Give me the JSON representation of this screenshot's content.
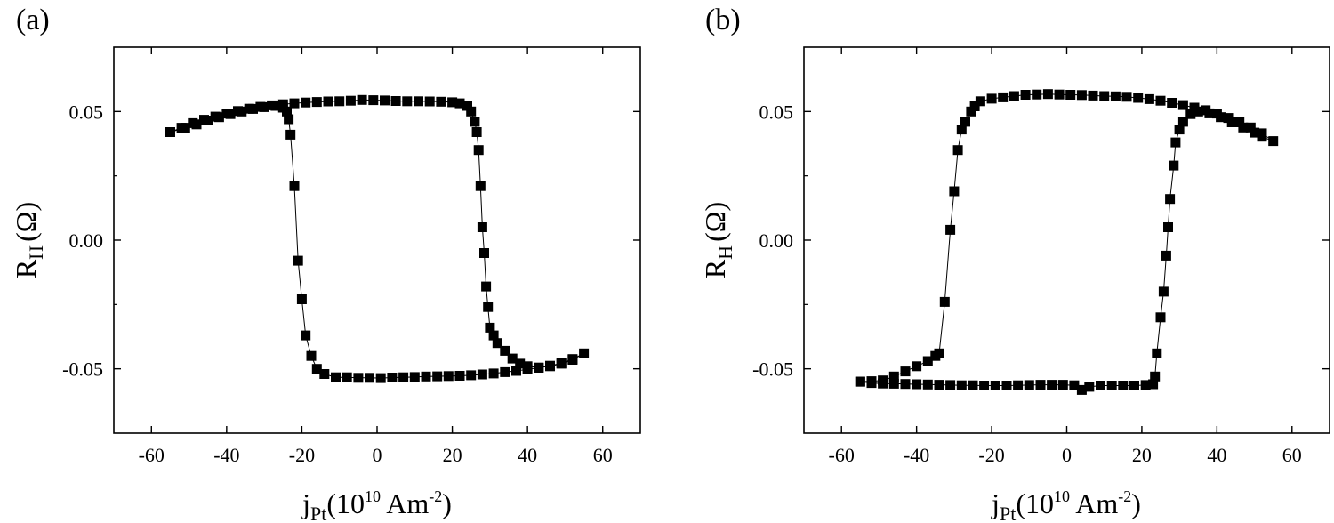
{
  "chart_data": [
    {
      "type": "line",
      "panel_label": "(a)",
      "xlabel_main": "j",
      "xlabel_sub": "Pt",
      "xlabel_open": "(10",
      "xlabel_sup1": "10",
      "xlabel_unit": " Am",
      "xlabel_sup2": "-2",
      "xlabel_close": ")",
      "ylabel_main": "R",
      "ylabel_sub": "H",
      "ylabel_unit": "(Ω)",
      "xlim": [
        -70,
        70
      ],
      "ylim": [
        -0.075,
        0.075
      ],
      "xticks": [
        -60,
        -40,
        -20,
        0,
        20,
        40,
        60
      ],
      "xtick_labels": [
        "-60",
        "-40",
        "-20",
        "0",
        "20",
        "40",
        "60"
      ],
      "yticks": [
        -0.05,
        0.0,
        0.05
      ],
      "ytick_labels": [
        "-0.05",
        "0.00",
        "0.05"
      ],
      "grid": false,
      "color": "#000000",
      "series": [
        {
          "values": [
            [
              -55,
              0.042
            ],
            [
              -52,
              0.0437
            ],
            [
              -49,
              0.0455
            ],
            [
              -46,
              0.0468
            ],
            [
              -43,
              0.048
            ],
            [
              -40,
              0.0492
            ],
            [
              -37,
              0.0502
            ],
            [
              -34,
              0.0511
            ],
            [
              -31,
              0.0518
            ],
            [
              -28,
              0.0524
            ],
            [
              -25,
              0.0528
            ],
            [
              -22,
              0.0532
            ],
            [
              -19,
              0.0535
            ],
            [
              -16,
              0.0537
            ],
            [
              -13,
              0.0539
            ],
            [
              -10,
              0.054
            ],
            [
              -7,
              0.0542
            ],
            [
              -4,
              0.0545
            ],
            [
              -1,
              0.0544
            ],
            [
              2,
              0.0543
            ],
            [
              5,
              0.0541
            ],
            [
              8,
              0.054
            ],
            [
              11,
              0.054
            ],
            [
              14,
              0.0539
            ],
            [
              17,
              0.0538
            ],
            [
              20,
              0.0536
            ],
            [
              22,
              0.0532
            ],
            [
              24,
              0.0522
            ],
            [
              25,
              0.05
            ],
            [
              26,
              0.046
            ],
            [
              26.5,
              0.042
            ],
            [
              27,
              0.035
            ],
            [
              27.5,
              0.021
            ],
            [
              28,
              0.005
            ],
            [
              28.5,
              -0.005
            ],
            [
              29,
              -0.018
            ],
            [
              29.5,
              -0.026
            ],
            [
              30,
              -0.034
            ],
            [
              31,
              -0.037
            ],
            [
              32,
              -0.04
            ],
            [
              34,
              -0.043
            ],
            [
              36,
              -0.046
            ],
            [
              38,
              -0.048
            ],
            [
              40,
              -0.049
            ],
            [
              43,
              -0.0495
            ],
            [
              46,
              -0.049
            ],
            [
              49,
              -0.048
            ],
            [
              52,
              -0.0465
            ],
            [
              55,
              -0.044
            ],
            [
              52,
              -0.0462
            ],
            [
              49,
              -0.0478
            ],
            [
              46,
              -0.0488
            ],
            [
              43,
              -0.0496
            ],
            [
              40,
              -0.0502
            ],
            [
              37,
              -0.0508
            ],
            [
              34,
              -0.0513
            ],
            [
              31,
              -0.0518
            ],
            [
              28,
              -0.0522
            ],
            [
              25,
              -0.0525
            ],
            [
              22,
              -0.0527
            ],
            [
              19,
              -0.0528
            ],
            [
              16,
              -0.0529
            ],
            [
              13,
              -0.053
            ],
            [
              10,
              -0.0532
            ],
            [
              7,
              -0.0533
            ],
            [
              4,
              -0.0534
            ],
            [
              1,
              -0.0536
            ],
            [
              -2,
              -0.0535
            ],
            [
              -5,
              -0.0535
            ],
            [
              -8,
              -0.0533
            ],
            [
              -11,
              -0.0533
            ],
            [
              -14,
              -0.052
            ],
            [
              -16,
              -0.05
            ],
            [
              -17.5,
              -0.045
            ],
            [
              -19,
              -0.037
            ],
            [
              -20,
              -0.023
            ],
            [
              -21,
              -0.008
            ],
            [
              -22,
              0.021
            ],
            [
              -23,
              0.041
            ],
            [
              -23.5,
              0.047
            ],
            [
              -24,
              0.05
            ],
            [
              -25,
              0.0515
            ],
            [
              -27,
              0.0522
            ],
            [
              -30,
              0.0517
            ],
            [
              -33,
              0.051
            ],
            [
              -36,
              0.05
            ],
            [
              -39,
              0.049
            ],
            [
              -42,
              0.0478
            ],
            [
              -45,
              0.0465
            ],
            [
              -48,
              0.045
            ],
            [
              -51,
              0.0437
            ],
            [
              -55,
              0.042
            ]
          ]
        }
      ]
    },
    {
      "type": "line",
      "panel_label": "(b)",
      "xlabel_main": "j",
      "xlabel_sub": "Pt",
      "xlabel_open": "(10",
      "xlabel_sup1": "10",
      "xlabel_unit": " Am",
      "xlabel_sup2": "-2",
      "xlabel_close": ")",
      "ylabel_main": "R",
      "ylabel_sub": "H",
      "ylabel_unit": "(Ω)",
      "xlim": [
        -70,
        70
      ],
      "ylim": [
        -0.075,
        0.075
      ],
      "xticks": [
        -60,
        -40,
        -20,
        0,
        20,
        40,
        60
      ],
      "xtick_labels": [
        "-60",
        "-40",
        "-20",
        "0",
        "20",
        "40",
        "60"
      ],
      "yticks": [
        -0.05,
        0.0,
        0.05
      ],
      "ytick_labels": [
        "-0.05",
        "0.00",
        "0.05"
      ],
      "grid": false,
      "color": "#000000",
      "series": [
        {
          "values": [
            [
              -55,
              -0.055
            ],
            [
              -52,
              -0.0555
            ],
            [
              -49,
              -0.0557
            ],
            [
              -46,
              -0.0558
            ],
            [
              -43,
              -0.0559
            ],
            [
              -40,
              -0.056
            ],
            [
              -37,
              -0.0561
            ],
            [
              -34,
              -0.0562
            ],
            [
              -31,
              -0.0563
            ],
            [
              -28,
              -0.0564
            ],
            [
              -25,
              -0.0564
            ],
            [
              -22,
              -0.0565
            ],
            [
              -19,
              -0.0565
            ],
            [
              -16,
              -0.0565
            ],
            [
              -13,
              -0.0564
            ],
            [
              -10,
              -0.0563
            ],
            [
              -7,
              -0.0562
            ],
            [
              -4,
              -0.0562
            ],
            [
              -1,
              -0.0562
            ],
            [
              2,
              -0.0564
            ],
            [
              4,
              -0.0582
            ],
            [
              6,
              -0.057
            ],
            [
              9,
              -0.0565
            ],
            [
              12,
              -0.0565
            ],
            [
              15,
              -0.0565
            ],
            [
              18,
              -0.0565
            ],
            [
              21,
              -0.0563
            ],
            [
              23,
              -0.056
            ],
            [
              23.5,
              -0.053
            ],
            [
              24,
              -0.044
            ],
            [
              25,
              -0.03
            ],
            [
              25.8,
              -0.02
            ],
            [
              26.5,
              -0.006
            ],
            [
              27,
              0.005
            ],
            [
              27.5,
              0.016
            ],
            [
              28.5,
              0.029
            ],
            [
              29,
              0.038
            ],
            [
              30,
              0.043
            ],
            [
              31,
              0.046
            ],
            [
              33,
              0.049
            ],
            [
              35,
              0.05
            ],
            [
              38,
              0.0493
            ],
            [
              41,
              0.0478
            ],
            [
              44,
              0.0458
            ],
            [
              47,
              0.0438
            ],
            [
              50,
              0.0418
            ],
            [
              52,
              0.0402
            ],
            [
              55,
              0.0385
            ],
            [
              52,
              0.0415
            ],
            [
              49,
              0.0438
            ],
            [
              46,
              0.0458
            ],
            [
              43,
              0.0475
            ],
            [
              40,
              0.0492
            ],
            [
              37,
              0.0505
            ],
            [
              34,
              0.0515
            ],
            [
              31,
              0.0525
            ],
            [
              28,
              0.0534
            ],
            [
              25,
              0.0542
            ],
            [
              22,
              0.0548
            ],
            [
              19,
              0.0553
            ],
            [
              16,
              0.0557
            ],
            [
              13,
              0.0559
            ],
            [
              10,
              0.056
            ],
            [
              7,
              0.0562
            ],
            [
              4,
              0.0564
            ],
            [
              1,
              0.0565
            ],
            [
              -2,
              0.0566
            ],
            [
              -5,
              0.0568
            ],
            [
              -8,
              0.0566
            ],
            [
              -11,
              0.0565
            ],
            [
              -14,
              0.056
            ],
            [
              -17,
              0.0555
            ],
            [
              -20,
              0.055
            ],
            [
              -23,
              0.054
            ],
            [
              -24.5,
              0.052
            ],
            [
              -25.5,
              0.05
            ],
            [
              -27,
              0.046
            ],
            [
              -28,
              0.043
            ],
            [
              -29,
              0.035
            ],
            [
              -30,
              0.019
            ],
            [
              -31,
              0.004
            ],
            [
              -32.5,
              -0.024
            ],
            [
              -34,
              -0.044
            ],
            [
              -35,
              -0.045
            ],
            [
              -37,
              -0.047
            ],
            [
              -40,
              -0.049
            ],
            [
              -43,
              -0.051
            ],
            [
              -46,
              -0.053
            ],
            [
              -49,
              -0.0545
            ],
            [
              -52,
              -0.0548
            ],
            [
              -55,
              -0.055
            ]
          ]
        }
      ]
    }
  ]
}
